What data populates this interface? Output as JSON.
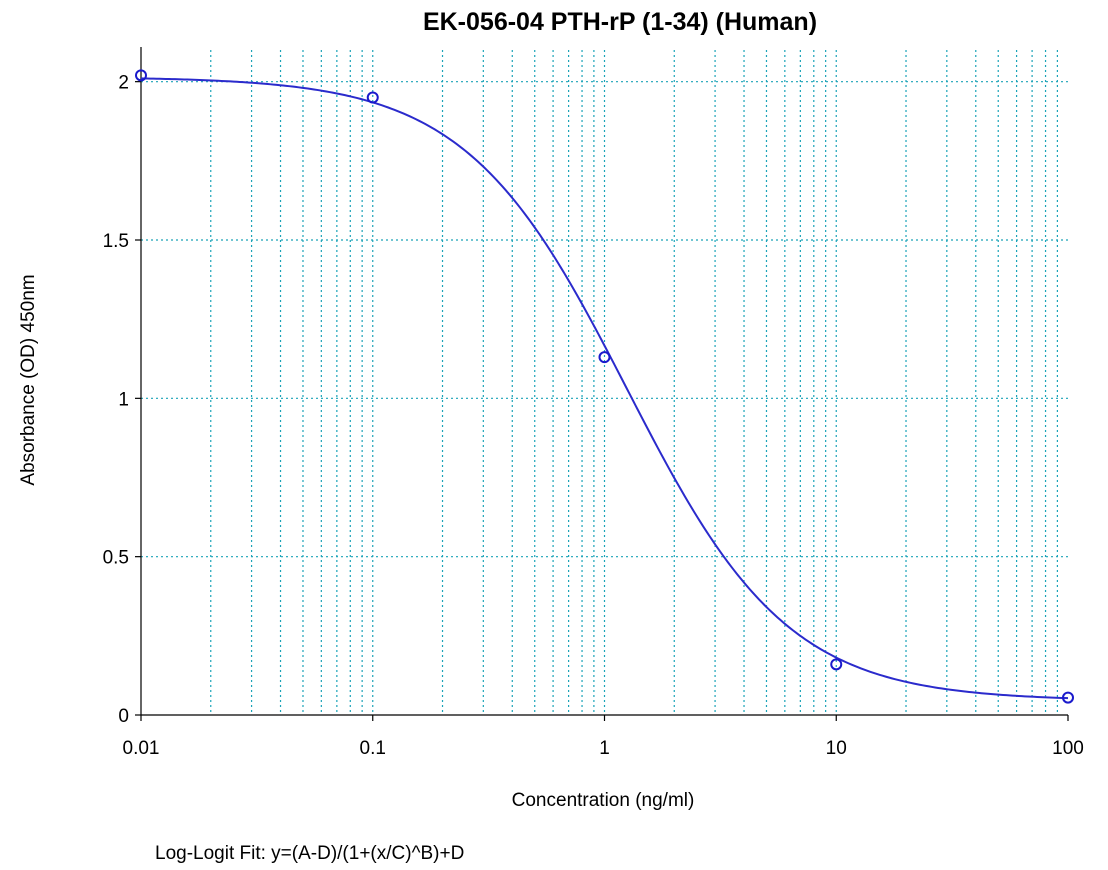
{
  "chart_data": {
    "type": "scatter",
    "title": "EK-056-04 PTH-rP (1-34) (Human)",
    "xlabel": "Concentration (ng/ml)",
    "ylabel": "Absorbance (OD) 450nm",
    "x_scale": "log",
    "xlim": [
      0.01,
      100
    ],
    "ylim": [
      0,
      2.1
    ],
    "x_ticks": [
      0.01,
      0.1,
      1,
      10,
      100
    ],
    "x_tick_labels": [
      "0.01",
      "0.1",
      "1",
      "10",
      "100"
    ],
    "y_ticks": [
      0,
      0.5,
      1,
      1.5,
      2
    ],
    "y_tick_labels": [
      "0",
      "0.5",
      "1",
      "1.5",
      "2"
    ],
    "grid": true,
    "series": [
      {
        "x": [
          0.01,
          0.1,
          1,
          10,
          100
        ],
        "y": [
          2.02,
          1.95,
          1.13,
          0.16,
          0.055
        ]
      }
    ],
    "fit": {
      "model": "log-logit",
      "params": {
        "A": 2.015,
        "B": 1.25,
        "C": 1.25,
        "D": 0.045
      }
    },
    "annotation": "Log-Logit Fit: y=(A-D)/(1+(x/C)^B)+D",
    "colors": {
      "curve": "#2b2bcc",
      "points": "#1a1acc",
      "grid": "#1aa3b8"
    }
  }
}
